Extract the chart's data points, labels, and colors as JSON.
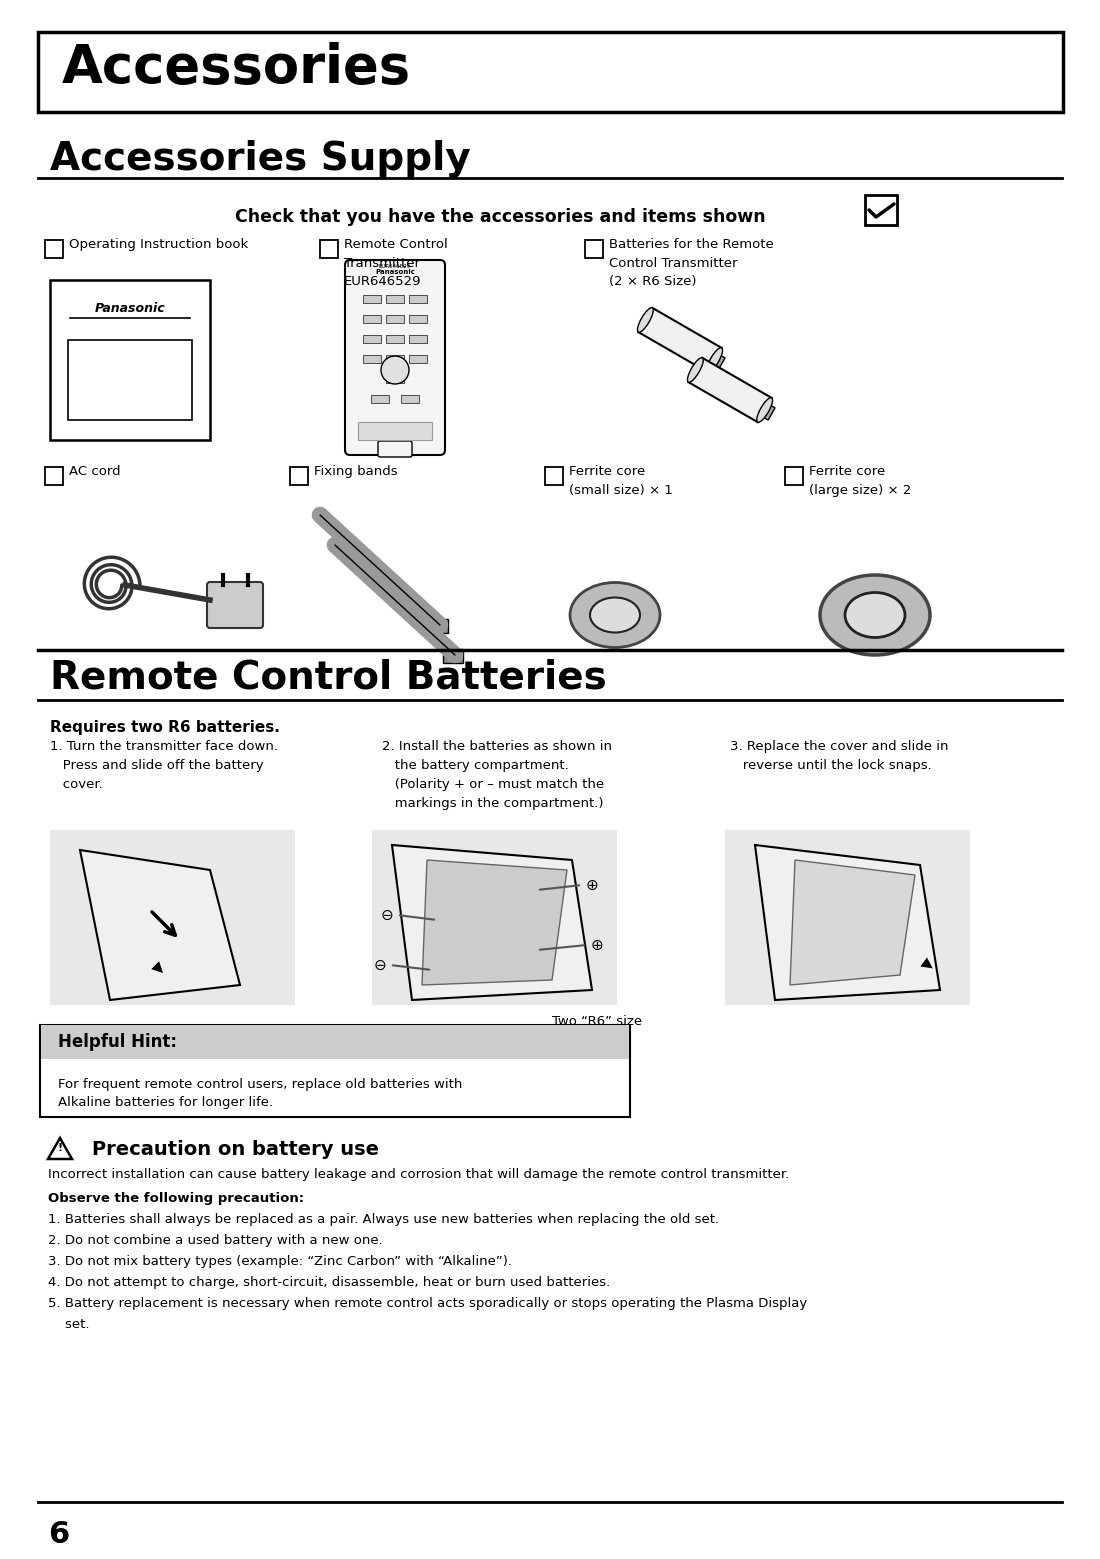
{
  "page_title": "Accessories",
  "section1_title": "Accessories Supply",
  "check_text": "Check that you have the accessories and items shown",
  "item1_label": "Operating Instruction book",
  "item2_label": "Remote Control\nTransmitter\nEUR646529",
  "item3_label": "Batteries for the Remote\nControl Transmitter\n(2 × R6 Size)",
  "item4_label": "AC cord",
  "item5_label": "Fixing bands",
  "item6_label": "Ferrite core\n(small size) × 1",
  "item7_label": "Ferrite core\n(large size) × 2",
  "section2_title": "Remote Control Batteries",
  "requires_text": "Requires two R6 batteries.",
  "step1": "1. Turn the transmitter face down.\n   Press and slide off the battery\n   cover.",
  "step2": "2. Install the batteries as shown in\n   the battery compartment.\n   (Polarity + or – must match the\n   markings in the compartment.)",
  "step3": "3. Replace the cover and slide in\n   reverse until the lock snaps.",
  "two_r6_text": "Two “R6” size",
  "helpful_hint_title": "Helpful Hint:",
  "helpful_hint_text": "For frequent remote control users, replace old batteries with\nAlkaline batteries for longer life.",
  "precaution_title": "Precaution on battery use",
  "precaution_intro": "Incorrect installation can cause battery leakage and corrosion that will damage the remote control transmitter.",
  "observe_text": "Observe the following precaution:",
  "precaution_items": [
    "1. Batteries shall always be replaced as a pair. Always use new batteries when replacing the old set.",
    "2. Do not combine a used battery with a new one.",
    "3. Do not mix battery types (example: “Zinc Carbon” with “Alkaline”).",
    "4. Do not attempt to charge, short-circuit, disassemble, heat or burn used batteries.",
    "5. Battery replacement is necessary when remote control acts sporadically or stops operating the Plasma Display",
    "    set."
  ],
  "page_number": "6"
}
